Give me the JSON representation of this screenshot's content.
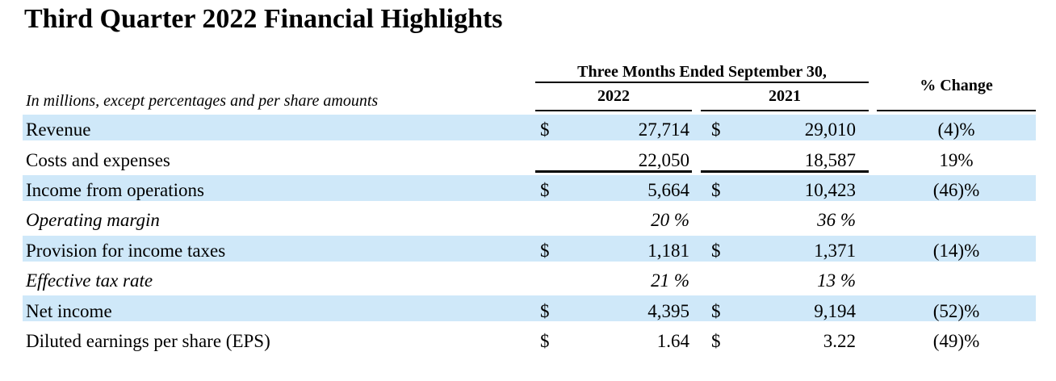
{
  "title": "Third Quarter 2022 Financial Highlights",
  "table": {
    "note": "In millions, except percentages and per share amounts",
    "period_header": "Three Months Ended September 30,",
    "col_2022": "2022",
    "col_2021": "2021",
    "change_header": "% Change",
    "highlight_color": "#cfe8f9",
    "rows": [
      {
        "label": "Revenue",
        "cur": "$",
        "y2022": "27,714",
        "y2021": "29,010",
        "change": "(4)%"
      },
      {
        "label": "Costs and expenses",
        "cur": "",
        "y2022": "22,050",
        "y2021": "18,587",
        "change": "19%"
      },
      {
        "label": "Income from operations",
        "cur": "$",
        "y2022": "5,664",
        "y2021": "10,423",
        "change": "(46)%"
      },
      {
        "label": "Operating margin",
        "cur": "",
        "y2022": "20 %",
        "y2021": "36 %",
        "change": ""
      },
      {
        "label": "Provision for income taxes",
        "cur": "$",
        "y2022": "1,181",
        "y2021": "1,371",
        "change": "(14)%"
      },
      {
        "label": "Effective tax rate",
        "cur": "",
        "y2022": "21 %",
        "y2021": "13 %",
        "change": ""
      },
      {
        "label": "Net income",
        "cur": "$",
        "y2022": "4,395",
        "y2021": "9,194",
        "change": "(52)%"
      },
      {
        "label": "Diluted earnings per share (EPS)",
        "cur": "$",
        "y2022": "1.64",
        "y2021": "3.22",
        "change": "(49)%"
      }
    ]
  }
}
